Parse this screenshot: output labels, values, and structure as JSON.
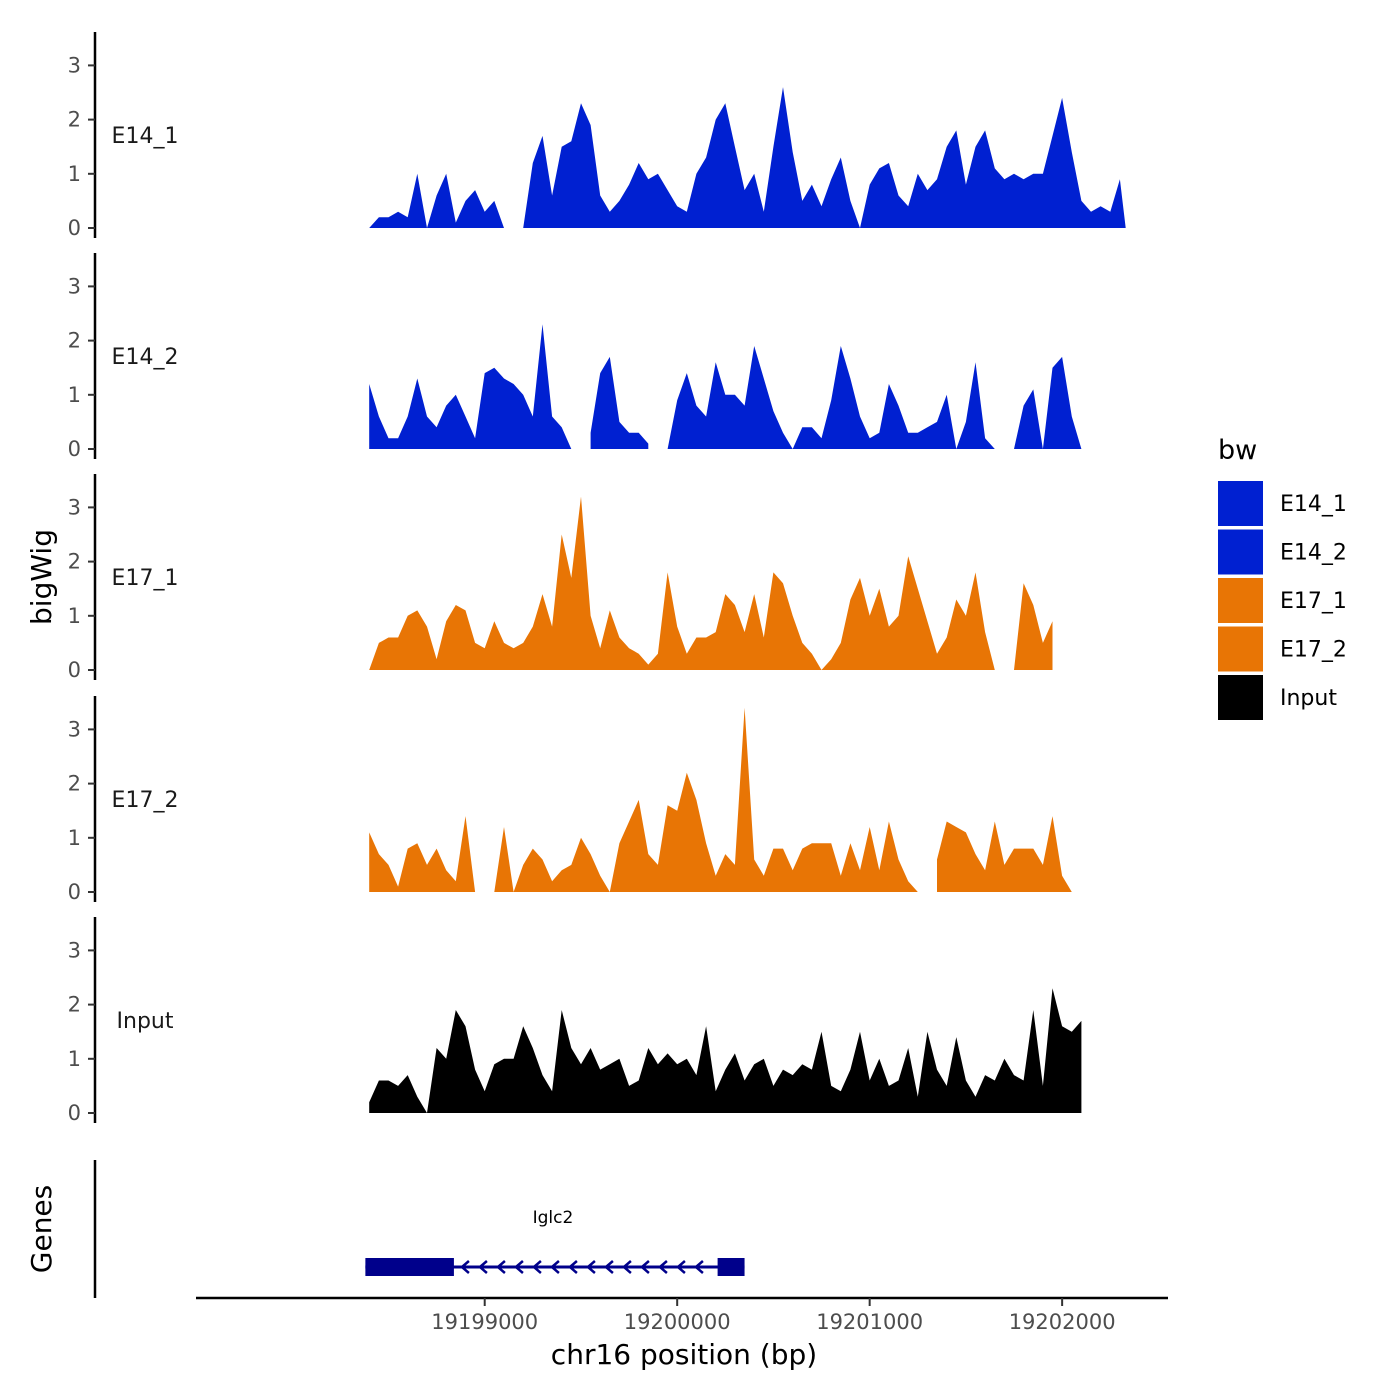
{
  "chart_data": {
    "type": "area",
    "ylabel": "bigWig",
    "xlabel": "chr16 position (bp)",
    "xlim": [
      19197500,
      19202550
    ],
    "ylim": [
      0,
      3.6
    ],
    "yticks": [
      0,
      1,
      2,
      3
    ],
    "xticks": [
      19199000,
      19200000,
      19201000,
      19202000
    ],
    "xtick_labels": [
      "19199000",
      "19200000",
      "19201000",
      "19202000"
    ],
    "legend": {
      "title": "bw",
      "position": "right",
      "entries": [
        {
          "label": "E14_1",
          "color": "#0020D1"
        },
        {
          "label": "E14_2",
          "color": "#0020D1"
        },
        {
          "label": "E17_1",
          "color": "#E87505"
        },
        {
          "label": "E17_2",
          "color": "#E87505"
        },
        {
          "label": "Input",
          "color": "#000000"
        }
      ]
    },
    "tracks": [
      {
        "name": "E14_1",
        "color": "#0020D1",
        "x": [
          19198400,
          19198450,
          19198500,
          19198550,
          19198600,
          19198650,
          19198700,
          19198750,
          19198800,
          19198850,
          19198900,
          19198950,
          19199000,
          19199050,
          19199100,
          19199150,
          19199200,
          19199250,
          19199300,
          19199350,
          19199400,
          19199450,
          19199500,
          19199550,
          19199600,
          19199650,
          19199700,
          19199750,
          19199800,
          19199850,
          19199900,
          19199950,
          19200000,
          19200050,
          19200100,
          19200150,
          19200200,
          19200250,
          19200300,
          19200350,
          19200400,
          19200450,
          19200500,
          19200550,
          19200600,
          19200650,
          19200700,
          19200750,
          19200800,
          19200850,
          19200900,
          19200950,
          19201000,
          19201050,
          19201100,
          19201150,
          19201200,
          19201250,
          19201300,
          19201350,
          19201400,
          19201450,
          19201500,
          19201550,
          19201600,
          19201650,
          19201700,
          19201750,
          19201800,
          19201850,
          19201900,
          19201950,
          19202000,
          19202050,
          19202100,
          19202150,
          19202200,
          19202250,
          19202300,
          19202330
        ],
        "values": [
          0.0,
          0.2,
          0.2,
          0.3,
          0.2,
          1.0,
          0.0,
          0.6,
          1.0,
          0.1,
          0.5,
          0.7,
          0.3,
          0.5,
          0.0,
          null,
          0.0,
          1.2,
          1.7,
          0.6,
          1.5,
          1.6,
          2.3,
          1.9,
          0.6,
          0.3,
          0.5,
          0.8,
          1.2,
          0.9,
          1.0,
          0.7,
          0.4,
          0.3,
          1.0,
          1.3,
          2.0,
          2.3,
          1.5,
          0.7,
          1.0,
          0.3,
          1.5,
          2.6,
          1.4,
          0.5,
          0.8,
          0.4,
          0.9,
          1.3,
          0.5,
          0.0,
          0.8,
          1.1,
          1.2,
          0.6,
          0.4,
          1.0,
          0.7,
          0.9,
          1.5,
          1.8,
          0.8,
          1.5,
          1.8,
          1.1,
          0.9,
          1.0,
          0.9,
          1.0,
          1.0,
          1.7,
          2.4,
          1.4,
          0.5,
          0.3,
          0.4,
          0.3,
          0.9,
          0.0
        ]
      },
      {
        "name": "E14_2",
        "color": "#0020D1",
        "x": [
          19198400,
          19198450,
          19198500,
          19198550,
          19198600,
          19198650,
          19198700,
          19198750,
          19198800,
          19198850,
          19198900,
          19198950,
          19199000,
          19199050,
          19199100,
          19199150,
          19199200,
          19199250,
          19199300,
          19199350,
          19199400,
          19199450,
          19199500,
          19199550,
          19199600,
          19199650,
          19199700,
          19199750,
          19199800,
          19199850,
          19199900,
          19199950,
          19200000,
          19200050,
          19200100,
          19200150,
          19200200,
          19200250,
          19200300,
          19200350,
          19200400,
          19200450,
          19200500,
          19200550,
          19200600,
          19200650,
          19200700,
          19200750,
          19200800,
          19200850,
          19200900,
          19200950,
          19201000,
          19201050,
          19201100,
          19201150,
          19201200,
          19201250,
          19201300,
          19201350,
          19201400,
          19201450,
          19201500,
          19201550,
          19201600,
          19201650,
          19201700,
          19201750,
          19201800,
          19201850,
          19201900,
          19201950,
          19202000,
          19202050,
          19202100,
          19202150,
          19202200,
          19202250,
          19202300,
          19202350
        ],
        "values": [
          1.2,
          0.6,
          0.2,
          0.2,
          0.6,
          1.3,
          0.6,
          0.4,
          0.8,
          1.0,
          0.6,
          0.2,
          1.4,
          1.5,
          1.3,
          1.2,
          1.0,
          0.6,
          2.3,
          0.6,
          0.4,
          0.0,
          null,
          0.3,
          1.4,
          1.7,
          0.5,
          0.3,
          0.3,
          0.1,
          null,
          0.0,
          0.9,
          1.4,
          0.8,
          0.6,
          1.6,
          1.0,
          1.0,
          0.8,
          1.9,
          1.3,
          0.7,
          0.3,
          0.0,
          0.4,
          0.4,
          0.2,
          0.9,
          1.9,
          1.3,
          0.6,
          0.2,
          0.3,
          1.2,
          0.8,
          0.3,
          0.3,
          0.4,
          0.5,
          1.0,
          0.0,
          0.5,
          1.6,
          0.2,
          0.0,
          null,
          0.0,
          0.8,
          1.1,
          0.0,
          1.5,
          1.7,
          0.6,
          0.0,
          null,
          null,
          null,
          null,
          null
        ]
      },
      {
        "name": "E17_1",
        "color": "#E87505",
        "x": [
          19198400,
          19198450,
          19198500,
          19198550,
          19198600,
          19198650,
          19198700,
          19198750,
          19198800,
          19198850,
          19198900,
          19198950,
          19199000,
          19199050,
          19199100,
          19199150,
          19199200,
          19199250,
          19199300,
          19199350,
          19199400,
          19199450,
          19199500,
          19199550,
          19199600,
          19199650,
          19199700,
          19199750,
          19199800,
          19199850,
          19199900,
          19199950,
          19200000,
          19200050,
          19200100,
          19200150,
          19200200,
          19200250,
          19200300,
          19200350,
          19200400,
          19200450,
          19200500,
          19200550,
          19200600,
          19200650,
          19200700,
          19200750,
          19200800,
          19200850,
          19200900,
          19200950,
          19201000,
          19201050,
          19201100,
          19201150,
          19201200,
          19201250,
          19201300,
          19201350,
          19201400,
          19201450,
          19201500,
          19201550,
          19201600,
          19201650,
          19201700,
          19201750,
          19201800,
          19201850,
          19201900,
          19201950,
          19202000,
          19202050,
          19202100,
          19202150,
          19202200,
          19202250,
          19202300,
          19202330
        ],
        "values": [
          0.0,
          0.5,
          0.6,
          0.6,
          1.0,
          1.1,
          0.8,
          0.2,
          0.9,
          1.2,
          1.1,
          0.5,
          0.4,
          0.9,
          0.5,
          0.4,
          0.5,
          0.8,
          1.4,
          0.8,
          2.5,
          1.7,
          3.2,
          1.0,
          0.4,
          1.1,
          0.6,
          0.4,
          0.3,
          0.1,
          0.3,
          1.8,
          0.8,
          0.3,
          0.6,
          0.6,
          0.7,
          1.4,
          1.2,
          0.7,
          1.4,
          0.6,
          1.8,
          1.6,
          1.0,
          0.5,
          0.3,
          0.0,
          0.2,
          0.5,
          1.3,
          1.7,
          1.0,
          1.5,
          0.8,
          1.0,
          2.1,
          1.5,
          0.9,
          0.3,
          0.6,
          1.3,
          1.0,
          1.8,
          0.7,
          0.0,
          null,
          0.0,
          1.6,
          1.2,
          0.5,
          0.9,
          null,
          null,
          null,
          null,
          null,
          null,
          null,
          null
        ]
      },
      {
        "name": "E17_2",
        "color": "#E87505",
        "x": [
          19198400,
          19198450,
          19198500,
          19198550,
          19198600,
          19198650,
          19198700,
          19198750,
          19198800,
          19198850,
          19198900,
          19198950,
          19199000,
          19199050,
          19199100,
          19199150,
          19199200,
          19199250,
          19199300,
          19199350,
          19199400,
          19199450,
          19199500,
          19199550,
          19199600,
          19199650,
          19199700,
          19199750,
          19199800,
          19199850,
          19199900,
          19199950,
          19200000,
          19200050,
          19200100,
          19200150,
          19200200,
          19200250,
          19200300,
          19200350,
          19200400,
          19200450,
          19200500,
          19200550,
          19200600,
          19200650,
          19200700,
          19200750,
          19200800,
          19200850,
          19200900,
          19200950,
          19201000,
          19201050,
          19201100,
          19201150,
          19201200,
          19201250,
          19201300,
          19201350,
          19201400,
          19201450,
          19201500,
          19201550,
          19201600,
          19201650,
          19201700,
          19201750,
          19201800,
          19201850,
          19201900,
          19201950,
          19202000,
          19202050,
          19202100,
          19202150,
          19202200,
          19202250,
          19202300,
          19202330
        ],
        "values": [
          1.1,
          0.7,
          0.5,
          0.1,
          0.8,
          0.9,
          0.5,
          0.8,
          0.4,
          0.2,
          1.4,
          0.0,
          null,
          0.0,
          1.2,
          0.0,
          0.5,
          0.8,
          0.6,
          0.2,
          0.4,
          0.5,
          1.0,
          0.7,
          0.3,
          0.0,
          0.9,
          1.3,
          1.7,
          0.7,
          0.5,
          1.6,
          1.5,
          2.2,
          1.7,
          0.9,
          0.3,
          0.7,
          0.5,
          3.4,
          0.6,
          0.3,
          0.8,
          0.8,
          0.4,
          0.8,
          0.9,
          0.9,
          0.9,
          0.3,
          0.9,
          0.4,
          1.2,
          0.4,
          1.3,
          0.6,
          0.2,
          0.0,
          null,
          0.6,
          1.3,
          1.2,
          1.1,
          0.7,
          0.4,
          1.3,
          0.5,
          0.8,
          0.8,
          0.8,
          0.5,
          1.4,
          0.3,
          0.0,
          null,
          null,
          null,
          null,
          null,
          null
        ]
      },
      {
        "name": "Input",
        "color": "#000000",
        "x": [
          19198400,
          19198450,
          19198500,
          19198550,
          19198600,
          19198650,
          19198700,
          19198750,
          19198800,
          19198850,
          19198900,
          19198950,
          19199000,
          19199050,
          19199100,
          19199150,
          19199200,
          19199250,
          19199300,
          19199350,
          19199400,
          19199450,
          19199500,
          19199550,
          19199600,
          19199650,
          19199700,
          19199750,
          19199800,
          19199850,
          19199900,
          19199950,
          19200000,
          19200050,
          19200100,
          19200150,
          19200200,
          19200250,
          19200300,
          19200350,
          19200400,
          19200450,
          19200500,
          19200550,
          19200600,
          19200650,
          19200700,
          19200750,
          19200800,
          19200850,
          19200900,
          19200950,
          19201000,
          19201050,
          19201100,
          19201150,
          19201200,
          19201250,
          19201300,
          19201350,
          19201400,
          19201450,
          19201500,
          19201550,
          19201600,
          19201650,
          19201700,
          19201750,
          19201800,
          19201850,
          19201900,
          19201950,
          19202000,
          19202050,
          19202100,
          19202150,
          19202200,
          19202250,
          19202300,
          19202330
        ],
        "values": [
          0.2,
          0.6,
          0.6,
          0.5,
          0.7,
          0.3,
          0.0,
          1.2,
          1.0,
          1.9,
          1.6,
          0.8,
          0.4,
          0.9,
          1.0,
          1.0,
          1.6,
          1.2,
          0.7,
          0.4,
          1.9,
          1.2,
          0.9,
          1.2,
          0.8,
          0.9,
          1.0,
          0.5,
          0.6,
          1.2,
          0.9,
          1.1,
          0.9,
          1.0,
          0.7,
          1.6,
          0.4,
          0.8,
          1.1,
          0.6,
          0.9,
          1.0,
          0.5,
          0.8,
          0.7,
          0.9,
          0.8,
          1.5,
          0.5,
          0.4,
          0.8,
          1.5,
          0.6,
          1.0,
          0.5,
          0.6,
          1.2,
          0.3,
          1.5,
          0.8,
          0.5,
          1.4,
          0.6,
          0.3,
          0.7,
          0.6,
          1.0,
          0.7,
          0.6,
          1.9,
          0.5,
          2.3,
          1.6,
          1.5,
          1.7,
          null,
          null,
          null,
          null,
          null
        ]
      }
    ],
    "genes": {
      "label": "Genes",
      "items": [
        {
          "name": "Iglc2",
          "strand": "-",
          "start": 19198380,
          "end": 19200350,
          "exons": [
            [
              19198380,
              19198840
            ],
            [
              19200210,
              19200350
            ]
          ],
          "color": "#00008B"
        }
      ]
    }
  }
}
